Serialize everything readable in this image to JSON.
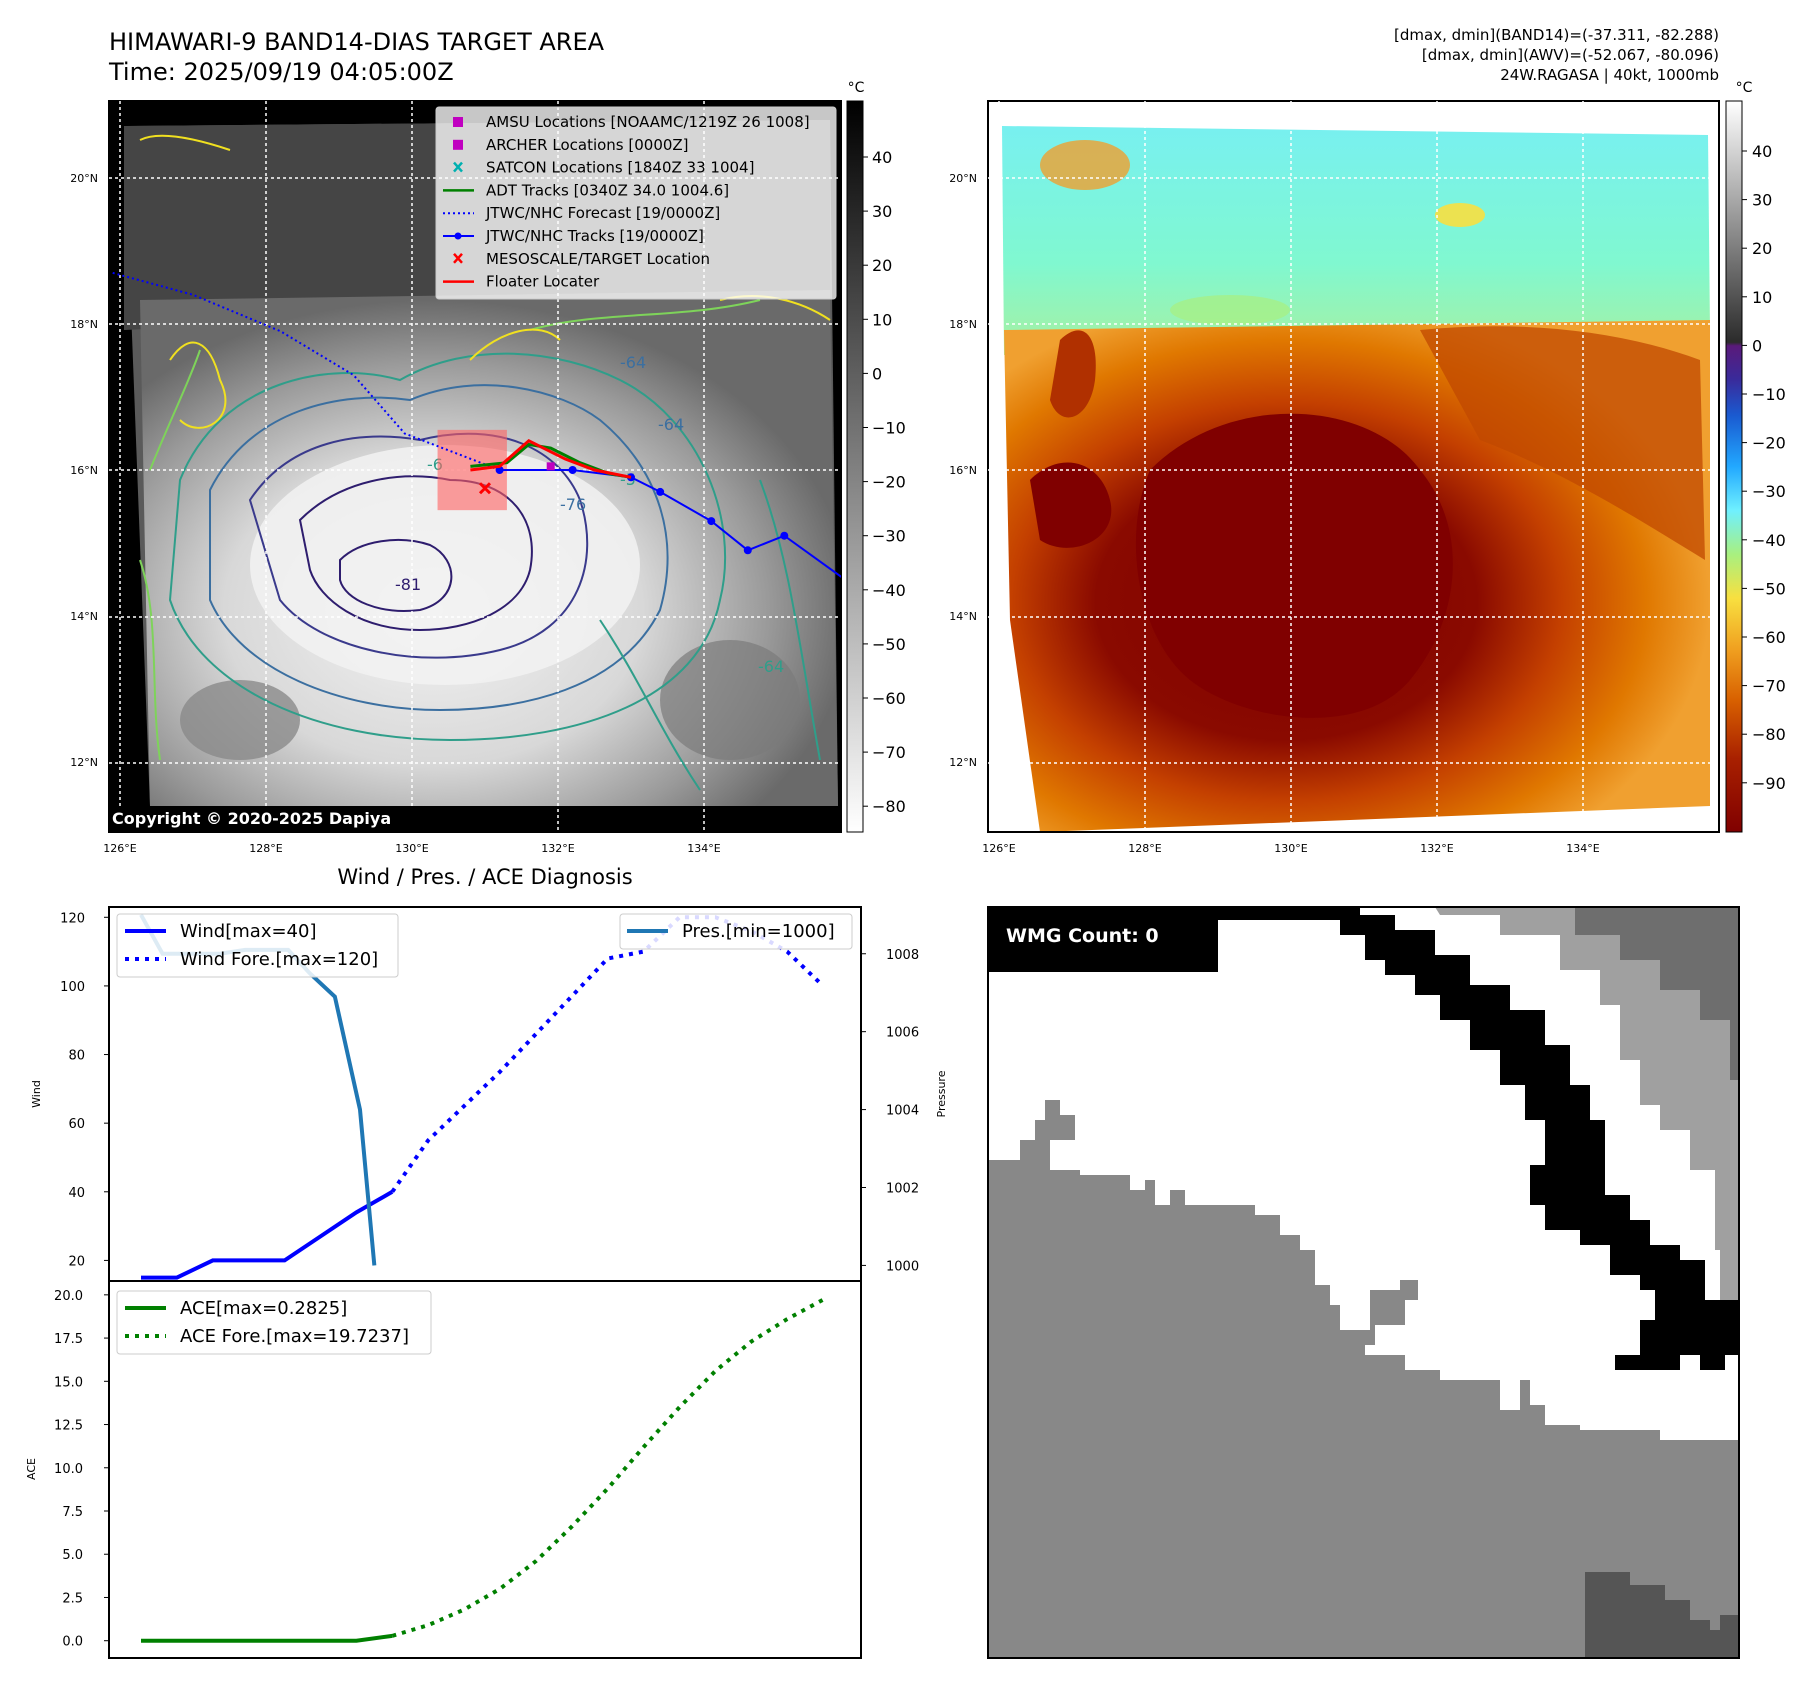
{
  "header": {
    "title_line1": "HIMAWARI-9 BAND14-DIAS TARGET AREA",
    "title_line2": "Time: 2025/09/19 04:05:00Z",
    "info_line1": "[dmax, dmin](BAND14)=(-37.311, -82.288)",
    "info_line2": "[dmax, dmin](AWV)=(-52.067, -80.096)",
    "info_line3": "24W.RAGASA | 40kt, 1000mb"
  },
  "map": {
    "lon_labels": [
      "126°E",
      "128°E",
      "130°E",
      "132°E",
      "134°E"
    ],
    "lat_labels": [
      "20°N",
      "18°N",
      "16°N",
      "14°N",
      "12°N"
    ],
    "copyright": "Copyright © 2020-2025 Dapiya",
    "contour_labels": [
      "-64",
      "-64",
      "-76",
      "-81",
      "-6",
      "-5",
      "-64"
    ],
    "colorbar_unit": "°C",
    "gray_colorbar_ticks": [
      "40",
      "30",
      "20",
      "10",
      "0",
      "−10",
      "−20",
      "−30",
      "−40",
      "−50",
      "−60",
      "−70",
      "−80"
    ],
    "color_colorbar_ticks": [
      "40",
      "30",
      "20",
      "10",
      "0",
      "−10",
      "−20",
      "−30",
      "−40",
      "−50",
      "−60",
      "−70",
      "−80",
      "−90"
    ],
    "legend": [
      {
        "label": "AMSU Locations [NOAAMC/1219Z 26 1008]",
        "symbol": "square",
        "color": "#c000c0"
      },
      {
        "label": "ARCHER Locations [0000Z]",
        "symbol": "square",
        "color": "#c000c0"
      },
      {
        "label": "SATCON Locations [1840Z 33 1004]",
        "symbol": "x",
        "color": "#00b0b0"
      },
      {
        "label": "ADT Tracks [0340Z 34.0 1004.6]",
        "symbol": "line",
        "color": "#008000"
      },
      {
        "label": "JTWC/NHC Forecast [19/0000Z]",
        "symbol": "dotted",
        "color": "#0000ff"
      },
      {
        "label": "JTWC/NHC Tracks [19/0000Z]",
        "symbol": "line-dot",
        "color": "#0000ff"
      },
      {
        "label": "MESOSCALE/TARGET Location",
        "symbol": "x",
        "color": "#ff0000"
      },
      {
        "label": "Floater Locater",
        "symbol": "line",
        "color": "#ff0000"
      }
    ],
    "jtwc_track": [
      [
        136.0,
        14.45
      ],
      [
        135.1,
        15.1
      ],
      [
        134.6,
        14.9
      ],
      [
        134.1,
        15.3
      ],
      [
        133.4,
        15.7
      ],
      [
        133.0,
        15.9
      ],
      [
        132.2,
        16.0
      ],
      [
        131.2,
        16.0
      ]
    ],
    "jtwc_forecast": [
      [
        125.9,
        18.7
      ],
      [
        127.0,
        18.4
      ],
      [
        128.2,
        17.9
      ],
      [
        129.2,
        17.3
      ],
      [
        129.9,
        16.5
      ],
      [
        131.2,
        16.0
      ]
    ],
    "adt_track": [
      [
        130.8,
        16.05
      ],
      [
        131.3,
        16.1
      ],
      [
        131.6,
        16.35
      ],
      [
        131.9,
        16.3
      ],
      [
        132.3,
        16.1
      ],
      [
        132.7,
        15.95
      ],
      [
        133.0,
        15.9
      ]
    ],
    "floater_track": [
      [
        130.8,
        16.0
      ],
      [
        131.2,
        16.05
      ],
      [
        131.6,
        16.4
      ],
      [
        132.1,
        16.15
      ],
      [
        132.5,
        16.0
      ],
      [
        133.0,
        15.9
      ]
    ],
    "target_box": {
      "lon": [
        130.35,
        131.3
      ],
      "lat": [
        15.45,
        16.55
      ]
    },
    "target_x": [
      131.0,
      15.75
    ],
    "amsu": [
      131.9,
      16.05
    ]
  },
  "wind_panel": {
    "title": "Wind / Pres. / ACE Diagnosis",
    "ylabel_left": "Wind",
    "ylabel_right": "Pressure",
    "y_ticks": [
      "20",
      "40",
      "60",
      "80",
      "100",
      "120"
    ],
    "p_ticks": [
      "1000",
      "1002",
      "1004",
      "1006",
      "1008"
    ],
    "legend_left": [
      "Wind[max=40]",
      "Wind Fore.[max=120]"
    ],
    "legend_right": "Pres.[min=1000]"
  },
  "ace_panel": {
    "ylabel": "ACE",
    "y_ticks": [
      "0.0",
      "2.5",
      "5.0",
      "7.5",
      "10.0",
      "12.5",
      "15.0",
      "17.5",
      "20.0"
    ],
    "legend": [
      "ACE[max=0.2825]",
      "ACE Fore.[max=19.7237]"
    ]
  },
  "wmg_panel": {
    "badge": "WMG Count: 0"
  },
  "colors": {
    "wind": "#0000ff",
    "pressure": "#1f77b4",
    "ace": "#008000"
  },
  "chart_data": [
    {
      "type": "line",
      "title": "Wind / Pres. / ACE Diagnosis",
      "ylabel": "Wind",
      "ylim": [
        14,
        123
      ],
      "series": [
        {
          "name": "Wind[max=40]",
          "x": [
            0,
            1,
            2,
            3,
            4,
            5,
            6,
            7
          ],
          "values": [
            15,
            15,
            20,
            20,
            20,
            27,
            34,
            40
          ]
        },
        {
          "name": "Wind Fore.[max=120]",
          "x": [
            7,
            8,
            9,
            10,
            11,
            12,
            13,
            14,
            15,
            16,
            17,
            18,
            19
          ],
          "values": [
            40,
            55,
            65,
            75,
            86,
            97,
            108,
            110,
            120,
            120,
            116,
            110,
            100
          ]
        }
      ]
    },
    {
      "type": "line",
      "ylabel": "Pressure",
      "ylim": [
        999.6,
        1009.2
      ],
      "series": [
        {
          "name": "Pres.[min=1000]",
          "x": [
            0,
            0.6,
            1.6,
            2.2,
            2.9,
            3.6,
            4.1,
            4.7,
            5.4,
            6.1,
            6.5
          ],
          "values": [
            1009,
            1008,
            1008,
            1008,
            1008.1,
            1008.1,
            1008.1,
            1007.5,
            1006.9,
            1004,
            1000
          ]
        }
      ]
    },
    {
      "type": "line",
      "ylabel": "ACE",
      "ylim": [
        -1,
        20.8
      ],
      "series": [
        {
          "name": "ACE[max=0.2825]",
          "x": [
            0,
            2,
            4,
            6,
            7
          ],
          "values": [
            0.0,
            0.0,
            0.0,
            0.0,
            0.28
          ]
        },
        {
          "name": "ACE Fore.[max=19.7237]",
          "x": [
            7,
            8,
            9,
            10,
            11,
            12,
            13,
            14,
            15,
            16,
            17,
            18,
            19
          ],
          "values": [
            0.28,
            0.9,
            1.8,
            3.0,
            4.6,
            6.6,
            8.8,
            11.2,
            13.5,
            15.6,
            17.3,
            18.6,
            19.72
          ]
        }
      ]
    }
  ]
}
